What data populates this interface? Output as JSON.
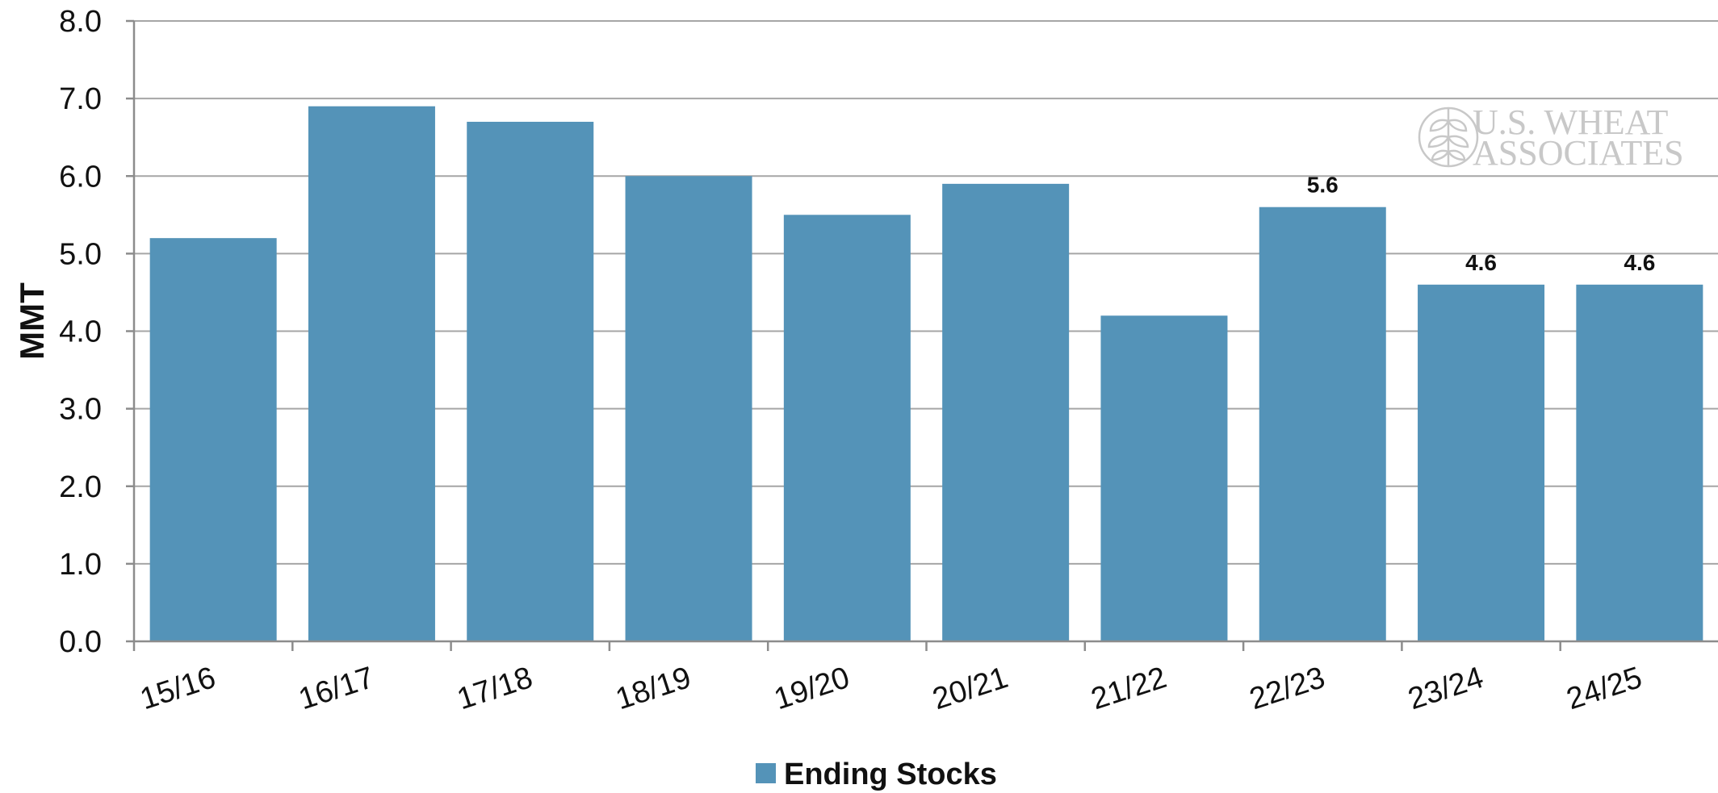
{
  "chart_data": {
    "type": "bar",
    "title": "",
    "xlabel": "",
    "ylabel": "MMT",
    "ylim": [
      0,
      8
    ],
    "yticks": [
      "0.0",
      "1.0",
      "2.0",
      "3.0",
      "4.0",
      "5.0",
      "6.0",
      "7.0",
      "8.0"
    ],
    "grid": true,
    "legend_position": "bottom-center",
    "categories": [
      "15/16",
      "16/17",
      "17/18",
      "18/19",
      "19/20",
      "20/21",
      "21/22",
      "22/23",
      "23/24",
      "24/25"
    ],
    "series": [
      {
        "name": "Ending Stocks",
        "color": "#5493b8",
        "values": [
          5.2,
          6.9,
          6.7,
          6.0,
          5.5,
          5.9,
          4.2,
          5.6,
          4.6,
          4.6
        ],
        "data_labels": [
          "",
          "",
          "",
          "",
          "",
          "",
          "",
          "5.6",
          "4.6",
          "4.6"
        ]
      }
    ],
    "watermark": {
      "line1": "U.S. WHEAT",
      "line2": "ASSOCIATES",
      "icon": "wheat-globe-icon"
    }
  }
}
